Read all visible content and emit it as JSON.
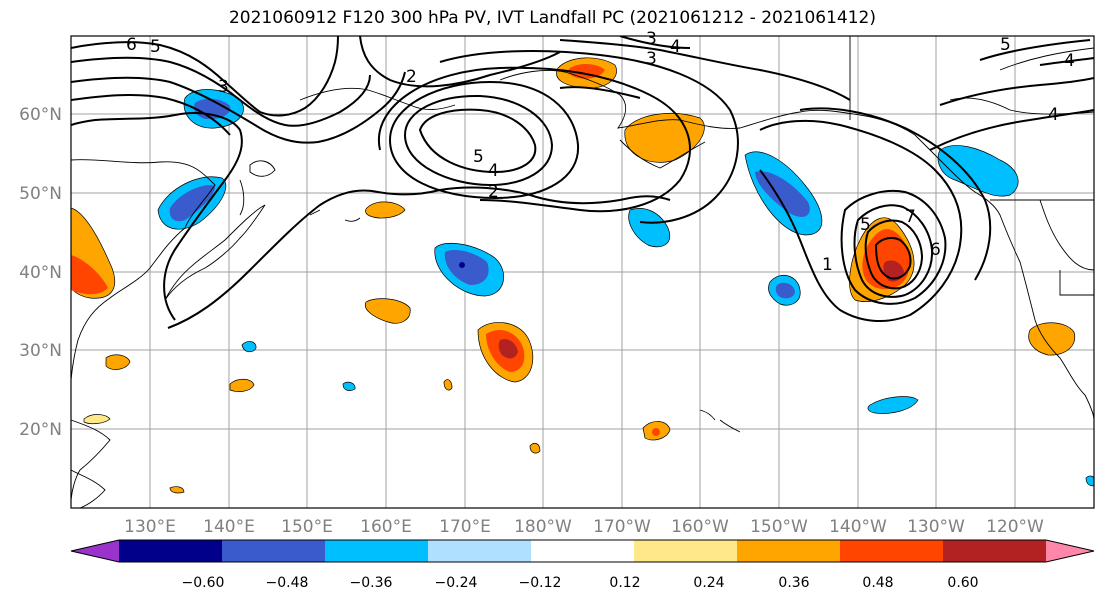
{
  "title": "2021060912 F120 300 hPa PV, IVT Landfall PC (2021061212 - 2021061412)",
  "lat_labels": [
    "60°N",
    "50°N",
    "40°N",
    "30°N",
    "20°N"
  ],
  "lon_labels": [
    "130°E",
    "140°E",
    "150°E",
    "160°E",
    "170°E",
    "180°W",
    "170°W",
    "160°W",
    "150°W",
    "140°W",
    "130°W",
    "120°W"
  ],
  "contour_labels": [
    "6",
    "5",
    "3",
    "2",
    "4",
    "5",
    "4",
    "2",
    "3",
    "4",
    "3",
    "5",
    "4",
    "7",
    "6",
    "5",
    "1"
  ],
  "colorbar": {
    "tick_labels": [
      "−0.60",
      "−0.48",
      "−0.36",
      "−0.24",
      "−0.12",
      "0.12",
      "0.24",
      "0.36",
      "0.48",
      "0.60"
    ],
    "colors": [
      "#9933cc",
      "#00008b",
      "#3a5bcc",
      "#00bfff",
      "#b0e0ff",
      "#ffffff",
      "#ffe88a",
      "#ffa500",
      "#ff4500",
      "#b22222",
      "#ff88aa"
    ]
  }
}
